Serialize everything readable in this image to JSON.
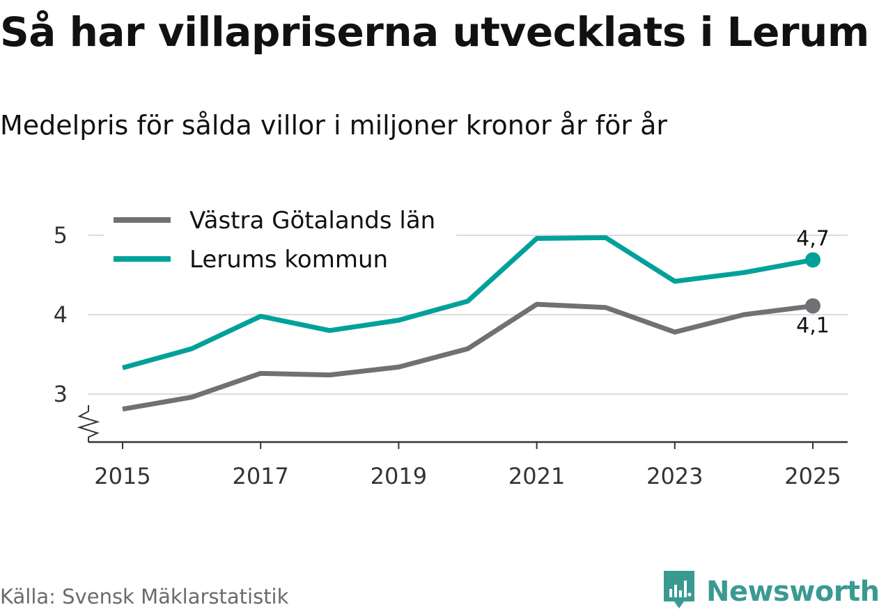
{
  "title": "Så har villapriserna utvecklats i Lerum",
  "subtitle": "Medelpris för sålda villor i miljoner kronor år för år",
  "source": "Källa: Svensk Mäklarstatistik",
  "brand": {
    "name": "Newsworthy",
    "color": "#3a9a92",
    "icon": "newsworthy-logo-icon"
  },
  "chart_data": {
    "type": "line",
    "title": "Så har villapriserna utvecklats i Lerum",
    "subtitle": "Medelpris för sålda villor i miljoner kronor år för år",
    "xlabel": "",
    "ylabel": "",
    "x": [
      2015,
      2016,
      2017,
      2018,
      2019,
      2020,
      2021,
      2022,
      2023,
      2024,
      2025
    ],
    "x_ticks": [
      2015,
      2017,
      2019,
      2021,
      2023,
      2025
    ],
    "x_tick_labels": [
      "2015",
      "2017",
      "2019",
      "2021",
      "2023",
      "2025"
    ],
    "y_ticks": [
      3,
      4,
      5
    ],
    "y_tick_labels": [
      "3",
      "4",
      "5"
    ],
    "ylim": [
      2.4,
      5.3
    ],
    "axis_break": true,
    "grid": true,
    "legend_position": "top-left",
    "series": [
      {
        "name": "Västra Götalands län",
        "color": "#707075",
        "values": [
          2.81,
          2.96,
          3.26,
          3.24,
          3.34,
          3.57,
          4.13,
          4.09,
          3.78,
          4.0,
          4.11
        ],
        "end_label": "4,1",
        "end_label_position": "below"
      },
      {
        "name": "Lerums kommun",
        "color": "#00a19a",
        "values": [
          3.33,
          3.57,
          3.98,
          3.8,
          3.93,
          4.17,
          4.96,
          4.97,
          4.42,
          4.53,
          4.69
        ],
        "end_label": "4,7",
        "end_label_position": "above"
      }
    ]
  }
}
